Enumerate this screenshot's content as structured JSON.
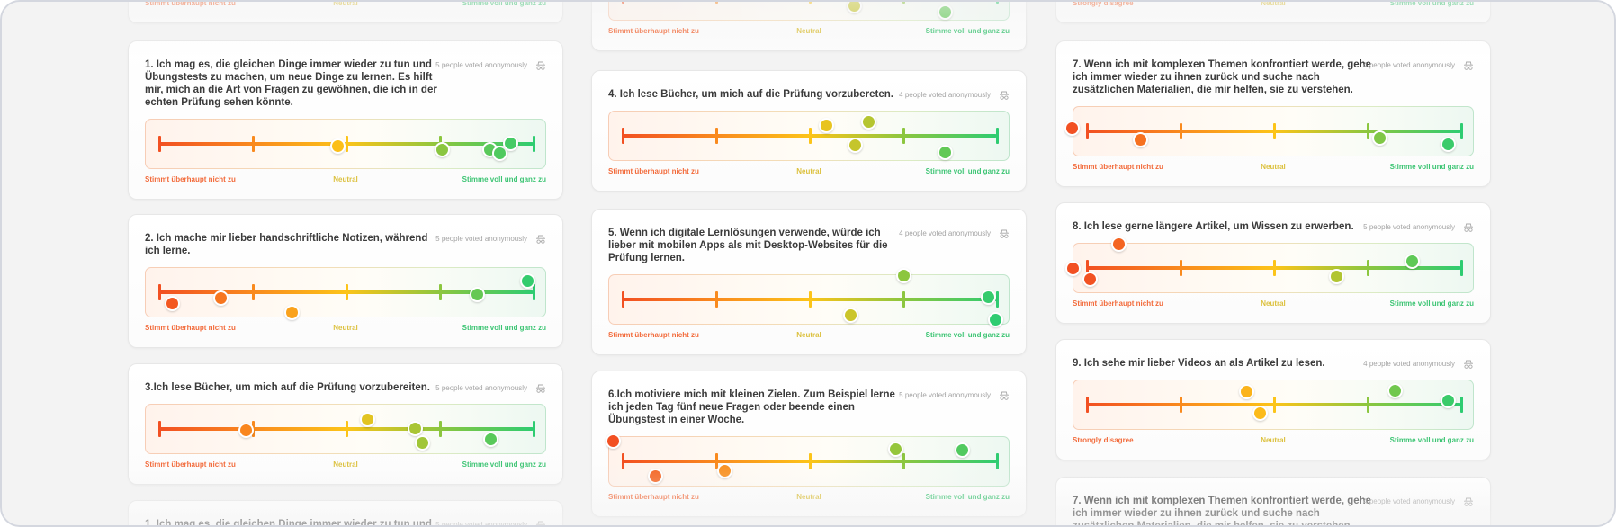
{
  "scale_colors": [
    "#f25022",
    "#f98a1e",
    "#fcc419",
    "#8cc63f",
    "#2ecc71"
  ],
  "label_colors": {
    "left": "#f26a3a",
    "middle": "#dcc13f",
    "right": "#3cc473"
  },
  "icon": "incognito-icon",
  "columns": [
    {
      "cards": [
        {
          "labels": {
            "left": "Stimmt überhaupt nicht zu",
            "middle": "Neutral",
            "right": "Stimme voll und ganz zu"
          }
        },
        {
          "title": "1. Ich mag es, die gleichen Dinge immer wieder zu tun und\nÜbungstests zu machen, um neue Dinge zu lernen. Es hilft\nmir, mich an die Art von Fragen zu gewöhnen, die ich in der\nechten Prüfung sehen könnte.",
          "votes_text": "5 people voted anonymously",
          "votes": [
            2.91,
            4.02,
            4.53,
            4.64,
            4.75
          ],
          "labels": {
            "left": "Stimmt überhaupt nicht zu",
            "middle": "Neutral",
            "right": "Stimme voll und ganz zu"
          }
        },
        {
          "title": "2. Ich mache mir lieber handschriftliche Notizen, während\nich lerne.",
          "votes_text": "5 people voted anonymously",
          "votes": [
            1.14,
            1.66,
            2.42,
            4.4,
            4.94
          ],
          "labels": {
            "left": "Stimmt überhaupt nicht zu",
            "middle": "Neutral",
            "right": "Stimme voll und ganz zu"
          }
        },
        {
          "title": "3.Ich lese Bücher, um mich auf die Prüfung vorzubereiten.",
          "votes_text": "5 people voted anonymously",
          "votes": [
            1.93,
            3.23,
            3.74,
            3.81,
            4.54
          ],
          "labels": {
            "left": "Stimmt überhaupt nicht zu",
            "middle": "Neutral",
            "right": "Stimme voll und ganz zu"
          }
        },
        {
          "title": "1. Ich mag es, die gleichen Dinge immer wieder zu tun und",
          "votes_text": "5 people voted anonymously"
        }
      ]
    },
    {
      "cards": [
        {
          "votes": [
            3.48,
            4.45
          ],
          "labels": {
            "left": "Stimmt überhaupt nicht zu",
            "middle": "Neutral",
            "right": "Stimme voll und ganz zu"
          }
        },
        {
          "title": "4. Ich lese Bücher, um mich auf die Prüfung vorzubereten.",
          "votes_text": "4 people voted anonymously",
          "votes": [
            3.18,
            3.63,
            3.49,
            4.45
          ],
          "labels": {
            "left": "Stimmt überhaupt nicht zu",
            "middle": "Neutral",
            "right": "Stimme voll und ganz zu"
          }
        },
        {
          "title": "5. Wenn ich digitale Lernlösungen verwende, würde ich\nlieber mit mobilen Apps als mit Desktop-Websites für die\nPrüfung lernen.",
          "votes_text": "4 people voted anonymously",
          "votes": [
            4.0,
            3.44,
            4.91,
            4.99
          ],
          "labels": {
            "left": "Stimmt überhaupt nicht zu",
            "middle": "Neutral",
            "right": "Stimme voll und ganz zu"
          }
        },
        {
          "title": "6.Ich motiviere mich mit kleinen Zielen. Zum Beispiel lerne\nich jeden Tag fünf neue Fragen oder beende einen\nÜbungstest in einer Woche.",
          "votes_text": "5 people voted anonymously",
          "votes": [
            0.9,
            1.35,
            2.09,
            3.92,
            4.63
          ],
          "labels": {
            "left": "Stimmt überhaupt nicht zu",
            "middle": "Neutral",
            "right": "Stimme voll und ganz zu"
          }
        }
      ]
    },
    {
      "cards": [
        {
          "labels": {
            "left": "Strongly disagree",
            "middle": "Neutral",
            "right": "Stimme voll und ganz zu"
          }
        },
        {
          "title": "7. Wenn ich mit komplexen Themen konfrontiert werde, gehe\nich immer wieder zu ihnen zurück und suche nach\nzusätzlichen Materialien, die mir helfen, sie zu verstehen.",
          "votes_text": "4 people voted anonymously",
          "votes": [
            0.84,
            1.57,
            4.13,
            4.86
          ],
          "labels": {
            "left": "Stimmt überhaupt nicht zu",
            "middle": "Neutral",
            "right": "Stimme voll und ganz zu"
          }
        },
        {
          "title": "8. Ich lese gerne längere Artikel, um Wissen zu erwerben.",
          "votes_text": "5 people voted anonymously",
          "votes": [
            1.34,
            0.85,
            1.03,
            3.67,
            4.48
          ],
          "labels": {
            "left": "Stimmt überhaupt nicht zu",
            "middle": "Neutral",
            "right": "Stimme voll und ganz zu"
          }
        },
        {
          "title": "9. Ich sehe mir lieber Videos an als Artikel zu lesen.",
          "votes_text": "4 people voted anonymously",
          "votes": [
            2.71,
            2.85,
            4.29,
            4.86
          ],
          "labels": {
            "left": "Strongly disagree",
            "middle": "Neutral",
            "right": "Stimme voll und ganz zu"
          }
        },
        {
          "title": "7. Wenn ich mit komplexen Themen konfrontiert werde, gehe\nich immer wieder zu ihnen zurück und suche nach\nzusätzlichen Materialien, die mir helfen, sie zu verstehen.",
          "votes_text": "4 people voted anonymously"
        }
      ]
    }
  ]
}
